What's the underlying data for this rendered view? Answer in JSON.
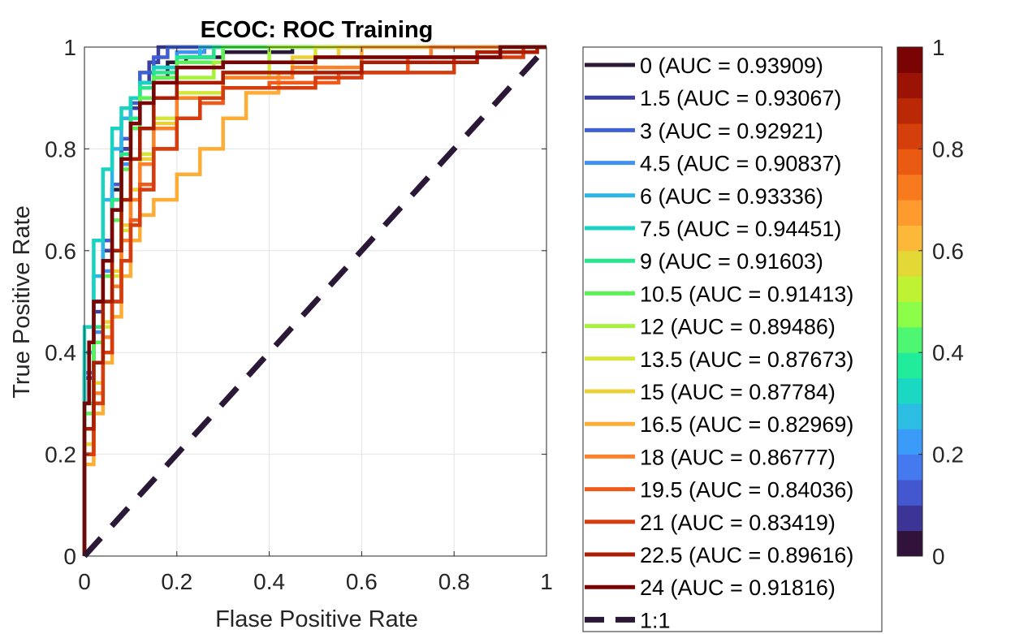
{
  "chart_data": {
    "type": "line",
    "title": "ECOC: ROC Training",
    "xlabel": "Flase Positive Rate",
    "ylabel": "True Positive Rate",
    "xlim": [
      0,
      1
    ],
    "ylim": [
      0,
      1
    ],
    "xticks": [
      "0",
      "0.2",
      "0.4",
      "0.6",
      "0.8",
      "1"
    ],
    "yticks": [
      "0",
      "0.2",
      "0.4",
      "0.6",
      "0.8",
      "1"
    ],
    "grid": true,
    "legend_position": "outside-right",
    "series": [
      {
        "name": "0 (AUC = 0.93909)",
        "color": "#2a1836",
        "points": [
          [
            0,
            0
          ],
          [
            0,
            0.2
          ],
          [
            0.01,
            0.3
          ],
          [
            0.02,
            0.42
          ],
          [
            0.04,
            0.5
          ],
          [
            0.06,
            0.62
          ],
          [
            0.08,
            0.72
          ],
          [
            0.1,
            0.8
          ],
          [
            0.12,
            0.86
          ],
          [
            0.15,
            0.9
          ],
          [
            0.18,
            0.94
          ],
          [
            0.22,
            0.97
          ],
          [
            0.3,
            0.98
          ],
          [
            0.45,
            0.99
          ],
          [
            0.7,
            1
          ],
          [
            1,
            1
          ]
        ]
      },
      {
        "name": "1.5 (AUC = 0.93067)",
        "color": "#3a3fa0",
        "points": [
          [
            0,
            0
          ],
          [
            0,
            0.18
          ],
          [
            0.02,
            0.35
          ],
          [
            0.04,
            0.48
          ],
          [
            0.06,
            0.6
          ],
          [
            0.08,
            0.7
          ],
          [
            0.1,
            0.8
          ],
          [
            0.12,
            0.88
          ],
          [
            0.14,
            0.93
          ],
          [
            0.16,
            0.97
          ],
          [
            0.18,
            1
          ],
          [
            1,
            1
          ]
        ]
      },
      {
        "name": "3 (AUC = 0.92921)",
        "color": "#3f5fd4",
        "points": [
          [
            0,
            0
          ],
          [
            0,
            0.2
          ],
          [
            0.02,
            0.36
          ],
          [
            0.04,
            0.5
          ],
          [
            0.06,
            0.62
          ],
          [
            0.08,
            0.73
          ],
          [
            0.1,
            0.82
          ],
          [
            0.12,
            0.89
          ],
          [
            0.15,
            0.95
          ],
          [
            0.18,
            0.98
          ],
          [
            0.2,
            1
          ],
          [
            1,
            1
          ]
        ]
      },
      {
        "name": "4.5 (AUC = 0.90837)",
        "color": "#4191f0",
        "points": [
          [
            0,
            0
          ],
          [
            0,
            0.15
          ],
          [
            0.02,
            0.3
          ],
          [
            0.04,
            0.44
          ],
          [
            0.06,
            0.56
          ],
          [
            0.08,
            0.68
          ],
          [
            0.1,
            0.77
          ],
          [
            0.12,
            0.85
          ],
          [
            0.15,
            0.92
          ],
          [
            0.2,
            0.96
          ],
          [
            0.26,
            0.99
          ],
          [
            0.3,
            1
          ],
          [
            1,
            1
          ]
        ]
      },
      {
        "name": "6 (AUC = 0.93336)",
        "color": "#2eb5e6",
        "points": [
          [
            0,
            0
          ],
          [
            0,
            0.22
          ],
          [
            0.02,
            0.4
          ],
          [
            0.04,
            0.55
          ],
          [
            0.06,
            0.7
          ],
          [
            0.08,
            0.8
          ],
          [
            0.1,
            0.86
          ],
          [
            0.12,
            0.9
          ],
          [
            0.15,
            0.93
          ],
          [
            0.2,
            0.96
          ],
          [
            0.25,
            0.98
          ],
          [
            0.32,
            1
          ],
          [
            1,
            1
          ]
        ]
      },
      {
        "name": "7.5 (AUC = 0.94451)",
        "color": "#1ad2c0",
        "points": [
          [
            0,
            0
          ],
          [
            0,
            0.25
          ],
          [
            0.02,
            0.45
          ],
          [
            0.04,
            0.62
          ],
          [
            0.06,
            0.76
          ],
          [
            0.08,
            0.84
          ],
          [
            0.1,
            0.88
          ],
          [
            0.12,
            0.9
          ],
          [
            0.15,
            0.93
          ],
          [
            0.2,
            0.96
          ],
          [
            0.28,
            0.98
          ],
          [
            0.35,
            1
          ],
          [
            1,
            1
          ]
        ]
      },
      {
        "name": "9 (AUC = 0.91603)",
        "color": "#27e68c",
        "points": [
          [
            0,
            0
          ],
          [
            0,
            0.15
          ],
          [
            0.02,
            0.3
          ],
          [
            0.04,
            0.45
          ],
          [
            0.06,
            0.58
          ],
          [
            0.08,
            0.7
          ],
          [
            0.1,
            0.79
          ],
          [
            0.12,
            0.86
          ],
          [
            0.15,
            0.92
          ],
          [
            0.2,
            0.95
          ],
          [
            0.28,
            0.98
          ],
          [
            0.4,
            1
          ],
          [
            1,
            1
          ]
        ]
      },
      {
        "name": "10.5 (AUC = 0.91413)",
        "color": "#5af254",
        "points": [
          [
            0,
            0
          ],
          [
            0,
            0.14
          ],
          [
            0.02,
            0.28
          ],
          [
            0.04,
            0.42
          ],
          [
            0.06,
            0.55
          ],
          [
            0.08,
            0.66
          ],
          [
            0.1,
            0.76
          ],
          [
            0.12,
            0.84
          ],
          [
            0.15,
            0.9
          ],
          [
            0.2,
            0.94
          ],
          [
            0.3,
            0.97
          ],
          [
            0.42,
            1
          ],
          [
            1,
            1
          ]
        ]
      },
      {
        "name": "12 (AUC = 0.89486)",
        "color": "#a4f23a",
        "points": [
          [
            0,
            0
          ],
          [
            0,
            0.12
          ],
          [
            0.02,
            0.25
          ],
          [
            0.04,
            0.38
          ],
          [
            0.06,
            0.5
          ],
          [
            0.08,
            0.6
          ],
          [
            0.1,
            0.7
          ],
          [
            0.12,
            0.78
          ],
          [
            0.15,
            0.84
          ],
          [
            0.2,
            0.9
          ],
          [
            0.28,
            0.94
          ],
          [
            0.4,
            0.97
          ],
          [
            0.55,
            1
          ],
          [
            1,
            1
          ]
        ]
      },
      {
        "name": "13.5 (AUC = 0.87673)",
        "color": "#d4e638",
        "points": [
          [
            0,
            0
          ],
          [
            0,
            0.1
          ],
          [
            0.02,
            0.22
          ],
          [
            0.04,
            0.34
          ],
          [
            0.06,
            0.45
          ],
          [
            0.08,
            0.55
          ],
          [
            0.1,
            0.64
          ],
          [
            0.12,
            0.72
          ],
          [
            0.15,
            0.79
          ],
          [
            0.2,
            0.86
          ],
          [
            0.3,
            0.91
          ],
          [
            0.4,
            0.94
          ],
          [
            0.5,
            0.97
          ],
          [
            0.6,
            1
          ],
          [
            1,
            1
          ]
        ]
      },
      {
        "name": "15 (AUC = 0.87784)",
        "color": "#ecd03a",
        "points": [
          [
            0,
            0
          ],
          [
            0,
            0.1
          ],
          [
            0.02,
            0.22
          ],
          [
            0.04,
            0.34
          ],
          [
            0.06,
            0.46
          ],
          [
            0.08,
            0.56
          ],
          [
            0.1,
            0.65
          ],
          [
            0.12,
            0.72
          ],
          [
            0.15,
            0.78
          ],
          [
            0.2,
            0.85
          ],
          [
            0.3,
            0.9
          ],
          [
            0.45,
            0.95
          ],
          [
            0.55,
            0.98
          ],
          [
            0.65,
            1
          ],
          [
            1,
            1
          ]
        ]
      },
      {
        "name": "16.5 (AUC = 0.82969)",
        "color": "#fdac36",
        "points": [
          [
            0,
            0
          ],
          [
            0,
            0.08
          ],
          [
            0.02,
            0.18
          ],
          [
            0.04,
            0.28
          ],
          [
            0.06,
            0.38
          ],
          [
            0.08,
            0.47
          ],
          [
            0.1,
            0.55
          ],
          [
            0.12,
            0.62
          ],
          [
            0.15,
            0.67
          ],
          [
            0.2,
            0.7
          ],
          [
            0.25,
            0.75
          ],
          [
            0.3,
            0.8
          ],
          [
            0.35,
            0.86
          ],
          [
            0.42,
            0.91
          ],
          [
            0.5,
            0.95
          ],
          [
            0.6,
            0.98
          ],
          [
            0.7,
            1
          ],
          [
            1,
            1
          ]
        ]
      },
      {
        "name": "18 (AUC = 0.86777)",
        "color": "#fb822a",
        "points": [
          [
            0,
            0
          ],
          [
            0,
            0.1
          ],
          [
            0.02,
            0.2
          ],
          [
            0.04,
            0.32
          ],
          [
            0.06,
            0.43
          ],
          [
            0.08,
            0.53
          ],
          [
            0.1,
            0.62
          ],
          [
            0.12,
            0.7
          ],
          [
            0.15,
            0.77
          ],
          [
            0.2,
            0.84
          ],
          [
            0.3,
            0.9
          ],
          [
            0.45,
            0.94
          ],
          [
            0.6,
            0.96
          ],
          [
            0.75,
            0.98
          ],
          [
            0.9,
            1
          ],
          [
            1,
            1
          ]
        ]
      },
      {
        "name": "19.5 (AUC = 0.84036)",
        "color": "#f05a1a",
        "points": [
          [
            0,
            0
          ],
          [
            0,
            0.1
          ],
          [
            0.02,
            0.2
          ],
          [
            0.04,
            0.3
          ],
          [
            0.06,
            0.4
          ],
          [
            0.08,
            0.5
          ],
          [
            0.1,
            0.58
          ],
          [
            0.12,
            0.66
          ],
          [
            0.15,
            0.73
          ],
          [
            0.2,
            0.8
          ],
          [
            0.25,
            0.86
          ],
          [
            0.3,
            0.89
          ],
          [
            0.4,
            0.92
          ],
          [
            0.55,
            0.93
          ],
          [
            0.7,
            0.95
          ],
          [
            0.9,
            0.98
          ],
          [
            1,
            1
          ]
        ]
      },
      {
        "name": "21 (AUC = 0.83419)",
        "color": "#d53c0e",
        "points": [
          [
            0,
            0
          ],
          [
            0,
            0.1
          ],
          [
            0.02,
            0.2
          ],
          [
            0.04,
            0.3
          ],
          [
            0.06,
            0.4
          ],
          [
            0.08,
            0.5
          ],
          [
            0.1,
            0.58
          ],
          [
            0.12,
            0.65
          ],
          [
            0.15,
            0.72
          ],
          [
            0.2,
            0.8
          ],
          [
            0.25,
            0.86
          ],
          [
            0.3,
            0.9
          ],
          [
            0.5,
            0.92
          ],
          [
            0.6,
            0.94
          ],
          [
            0.8,
            0.95
          ],
          [
            0.95,
            0.98
          ],
          [
            1,
            1
          ]
        ]
      },
      {
        "name": "22.5 (AUC = 0.89616)",
        "color": "#ab1e04",
        "points": [
          [
            0,
            0
          ],
          [
            0,
            0.12
          ],
          [
            0.02,
            0.25
          ],
          [
            0.04,
            0.38
          ],
          [
            0.06,
            0.5
          ],
          [
            0.08,
            0.6
          ],
          [
            0.1,
            0.7
          ],
          [
            0.12,
            0.78
          ],
          [
            0.15,
            0.84
          ],
          [
            0.2,
            0.9
          ],
          [
            0.3,
            0.93
          ],
          [
            0.6,
            0.95
          ],
          [
            0.85,
            0.97
          ],
          [
            0.98,
            0.99
          ],
          [
            1,
            1
          ]
        ]
      },
      {
        "name": "24 (AUC = 0.91816)",
        "color": "#7a0403",
        "points": [
          [
            0,
            0
          ],
          [
            0,
            0.15
          ],
          [
            0.01,
            0.3
          ],
          [
            0.02,
            0.42
          ],
          [
            0.04,
            0.5
          ],
          [
            0.06,
            0.58
          ],
          [
            0.08,
            0.68
          ],
          [
            0.1,
            0.78
          ],
          [
            0.12,
            0.85
          ],
          [
            0.15,
            0.89
          ],
          [
            0.2,
            0.93
          ],
          [
            0.3,
            0.96
          ],
          [
            0.5,
            0.97
          ],
          [
            0.9,
            0.98
          ],
          [
            1,
            1
          ]
        ]
      },
      {
        "name": "1:1",
        "color": "#2a1836",
        "dashed": true,
        "points": [
          [
            0,
            0
          ],
          [
            1,
            1
          ]
        ]
      }
    ],
    "colorbar": {
      "ticks": [
        "0",
        "0.2",
        "0.4",
        "0.6",
        "0.8",
        "1"
      ],
      "range": [
        0,
        1
      ],
      "colors": [
        "#30123b",
        "#3d3595",
        "#4357cf",
        "#4479f0",
        "#3a9bf9",
        "#2bbde2",
        "#1ad8c2",
        "#21ec9c",
        "#4ef772",
        "#8cfd48",
        "#bef233",
        "#e3d936",
        "#fbb839",
        "#fe9a2e",
        "#f77a1f",
        "#ea5a12",
        "#d53f0b",
        "#bb2806",
        "#9a1304",
        "#7a0403"
      ]
    }
  }
}
